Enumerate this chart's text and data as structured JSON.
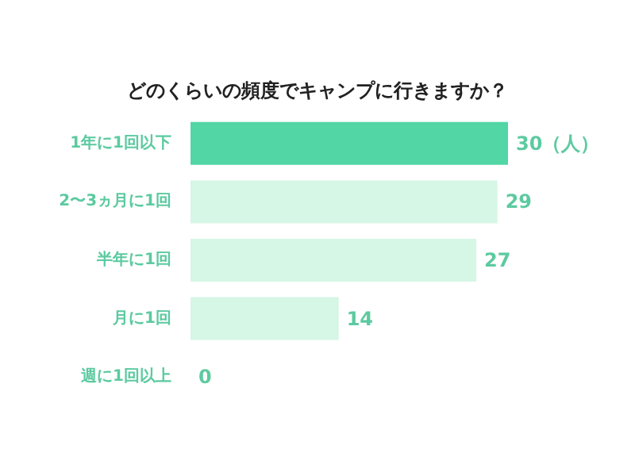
{
  "chart_data": {
    "type": "bar",
    "orientation": "horizontal",
    "title": "どのくらいの頻度でキャンプに行きますか？",
    "categories": [
      "1年に1回以下",
      "2〜3ヵ月に1回",
      "半年に1回",
      "月に1回",
      "週に1回以上"
    ],
    "values": [
      30,
      29,
      27,
      14,
      0
    ],
    "colors": [
      "#52d6a5",
      "#d6f6e6",
      "#d6f6e6",
      "#d6f6e6",
      "#d6f6e6"
    ],
    "value_labels": [
      "30（人）",
      "29",
      "27",
      "14",
      "0"
    ]
  }
}
